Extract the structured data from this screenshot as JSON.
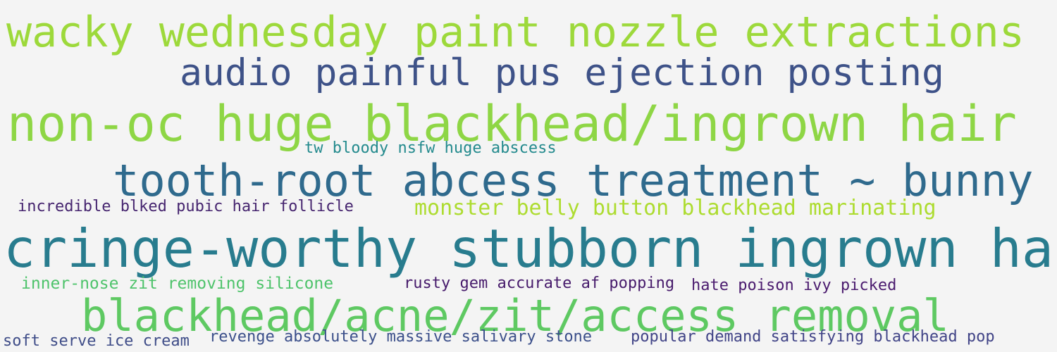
{
  "words": [
    {
      "text": "wacky wednesday paint nozzle extractions",
      "color": "#9dd93b"
    },
    {
      "text": "audio painful pus ejection posting",
      "color": "#3e5288"
    },
    {
      "text": "non-oc huge blackhead/ingrown hair",
      "color": "#8ed645"
    },
    {
      "text": "tw bloody nsfw huge abscess",
      "color": "#238a8d"
    },
    {
      "text": "tooth-root abcess treatment ~ bunny",
      "color": "#2f6a8d"
    },
    {
      "text": "incredible blked pubic hair follicle",
      "color": "#46256f"
    },
    {
      "text": "monster belly button blackhead marinating",
      "color": "#addc30"
    },
    {
      "text": "cringe-worthy stubborn ingrown hair",
      "color": "#287c8e"
    },
    {
      "text": "inner-nose zit removing silicone",
      "color": "#4ec36b"
    },
    {
      "text": "rusty gem accurate af popping",
      "color": "#461a6b"
    },
    {
      "text": "hate poison ivy picked",
      "color": "#4a1a6e"
    },
    {
      "text": "blackhead/acne/zit/access removal",
      "color": "#5ec962"
    },
    {
      "text": "soft serve ice cream",
      "color": "#3f4d88"
    },
    {
      "text": "revenge absolutely massive salivary stone",
      "color": "#3b4f8a"
    },
    {
      "text": "popular demand satisfying blackhead pop",
      "color": "#414487"
    }
  ]
}
